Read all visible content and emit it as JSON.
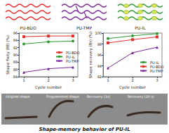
{
  "schematic": {
    "labels": [
      "PU-BDO",
      "PU-TMP",
      "PU-IL"
    ],
    "colors": [
      "#e0302a",
      "#7b2a9a",
      "#2e9a2e"
    ]
  },
  "chart_data": [
    {
      "type": "line",
      "x": [
        1,
        2,
        3
      ],
      "xlim": [
        0.8,
        3.2
      ],
      "xticks": [
        1,
        2,
        3
      ],
      "x_label": "Cycle number",
      "y_label": "Shape fixity (Rf) (%)",
      "ylim": [
        84,
        96
      ],
      "yticks": [
        84,
        86,
        88,
        90,
        92,
        94,
        96
      ],
      "grid": false,
      "legend": "right",
      "series": [
        {
          "name": "PU-BDO",
          "color": "#e0302a",
          "marker": "rect",
          "values": [
            95.0,
            95.2,
            95.2
          ]
        },
        {
          "name": "PU-IL",
          "color": "#2e9a2e",
          "marker": "circle",
          "values": [
            93.0,
            93.6,
            93.8
          ]
        },
        {
          "name": "PU-TMP",
          "color": "#7b2a9a",
          "marker": "triangle",
          "values": [
            85.2,
            86.2,
            86.6
          ]
        }
      ]
    },
    {
      "type": "line",
      "x": [
        1,
        2,
        3
      ],
      "xlim": [
        0.8,
        3.2
      ],
      "xticks": [
        1,
        2,
        3
      ],
      "x_label": "Cycle number",
      "y_label": "Shape recovery (Rr) (%)",
      "ylim": [
        92,
        100
      ],
      "yticks": [
        92,
        94,
        96,
        98,
        100
      ],
      "grid": false,
      "legend": "lower right",
      "series": [
        {
          "name": "PU-IL",
          "color": "#2e9a2e",
          "marker": "circle",
          "values": [
            99.0,
            99.5,
            99.9
          ]
        },
        {
          "name": "PU-BDO",
          "color": "#e0302a",
          "marker": "rect",
          "values": [
            98.2,
            98.8,
            99.3
          ]
        },
        {
          "name": "PU-TMP",
          "color": "#7b2a9a",
          "marker": "triangle",
          "values": [
            93.6,
            96.4,
            97.4
          ]
        }
      ]
    }
  ],
  "photos": {
    "captions": [
      "Original shape",
      "Programmed shape",
      "Recovery (1s)",
      "Recovery (20 s)"
    ],
    "title": "Shape-memory behavior of PU-IL"
  }
}
